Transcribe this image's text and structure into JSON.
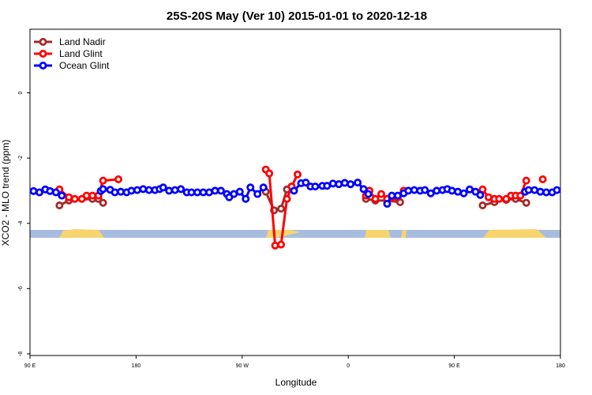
{
  "chart_data": {
    "type": "line",
    "title": "25S-20S May (Ver 10)   2015-01-01 to 2020-12-18",
    "x_label": "Longitude",
    "y_label": "XCO2 - MLO trend (ppm)",
    "xlim": [
      90,
      540
    ],
    "ylim": [
      -8.05,
      1.95
    ],
    "xticks": [
      {
        "value": 90,
        "label": "90 E"
      },
      180,
      {
        "value": 270,
        "label": "90 W"
      },
      {
        "value": 360,
        "label": "0"
      },
      {
        "value": 450,
        "label": "90 E"
      },
      {
        "value": 540,
        "label": "180"
      }
    ],
    "yticks": [
      -8,
      -6,
      -4,
      -2,
      0
    ],
    "legend": "top-left",
    "series": [
      {
        "name": "Land Nadir",
        "color": "#a52a2a",
        "x": [
          115,
          123,
          143,
          148,
          152,
          null,
          290,
          297,
          303,
          308,
          312,
          null,
          375,
          383,
          393,
          404,
          null,
          474,
          484,
          494,
          502,
          511
        ],
        "values": [
          -3.45,
          -3.3,
          -3.25,
          -3.25,
          -3.37,
          null,
          -3.03,
          -3.6,
          -3.55,
          -2.96,
          -2.87,
          null,
          -3.25,
          -3.3,
          -3.3,
          -3.35,
          null,
          -3.45,
          -3.35,
          -3.28,
          -3.25,
          -3.37
        ]
      },
      {
        "name": "Land Glint",
        "color": "#ff0000",
        "x": [
          115,
          123,
          128,
          134,
          138,
          143,
          148,
          152,
          165,
          null,
          290,
          293,
          298,
          303,
          308,
          312,
          317,
          null,
          375,
          378,
          383,
          388,
          393,
          397,
          402,
          407,
          null,
          474,
          479,
          484,
          488,
          494,
          498,
          502,
          506,
          511,
          null,
          525
        ],
        "values": [
          -2.96,
          -3.2,
          -3.25,
          -3.25,
          -3.15,
          -3.15,
          -3.15,
          -2.69,
          -2.65,
          null,
          -2.35,
          -2.47,
          -4.68,
          -4.65,
          -3.25,
          -2.87,
          -2.5,
          null,
          -3.15,
          -3.0,
          -3.25,
          -3.1,
          -3.25,
          -3.2,
          -3.2,
          -3.0,
          null,
          -2.96,
          -3.2,
          -3.25,
          -3.25,
          -3.25,
          -3.15,
          -3.15,
          -3.15,
          -2.69,
          null,
          -2.65
        ]
      },
      {
        "name": "Ocean Glint",
        "color": "#0000ff",
        "x": [
          93,
          98,
          103,
          107,
          112,
          117,
          null,
          150,
          152,
          158,
          162,
          167,
          172,
          176,
          181,
          186,
          191,
          196,
          200,
          203,
          208,
          213,
          218,
          223,
          227,
          232,
          237,
          242,
          247,
          252,
          257,
          259,
          263,
          268,
          273,
          277,
          283,
          288,
          null,
          314,
          320,
          324,
          328,
          332,
          338,
          342,
          347,
          352,
          357,
          362,
          368,
          373,
          377,
          null,
          393,
          397,
          402,
          407,
          411,
          416,
          421,
          425,
          430,
          435,
          440,
          444,
          448,
          453,
          458,
          463,
          468,
          472,
          null,
          510,
          513,
          518,
          523,
          528,
          533,
          537
        ],
        "values": [
          -3.01,
          -3.05,
          -2.96,
          -3.01,
          -3.05,
          -3.15,
          null,
          -3.01,
          -2.95,
          -2.97,
          -3.05,
          -3.03,
          -3.05,
          -3.0,
          -2.98,
          -2.95,
          -2.98,
          -2.98,
          -2.95,
          -2.9,
          -3.0,
          -2.98,
          -2.95,
          -3.05,
          -3.05,
          -3.05,
          -3.05,
          -3.05,
          -3.0,
          -3.0,
          -3.1,
          -3.2,
          -3.1,
          -3.03,
          -3.25,
          -2.9,
          -3.1,
          -2.9,
          null,
          -3.0,
          -2.77,
          -2.75,
          -2.87,
          -2.87,
          -2.85,
          -2.85,
          -2.78,
          -2.8,
          -2.76,
          -2.8,
          -2.75,
          -2.95,
          -3.1,
          null,
          -3.4,
          -3.15,
          -3.15,
          -3.08,
          -3.0,
          -2.98,
          -3.0,
          -2.98,
          -3.08,
          -3.0,
          -2.98,
          -2.95,
          -3.0,
          -3.03,
          -3.08,
          -2.96,
          -3.03,
          -3.13,
          null,
          -3.03,
          -2.98,
          -2.98,
          -3.03,
          -3.05,
          -3.05,
          -2.98
        ]
      }
    ]
  }
}
